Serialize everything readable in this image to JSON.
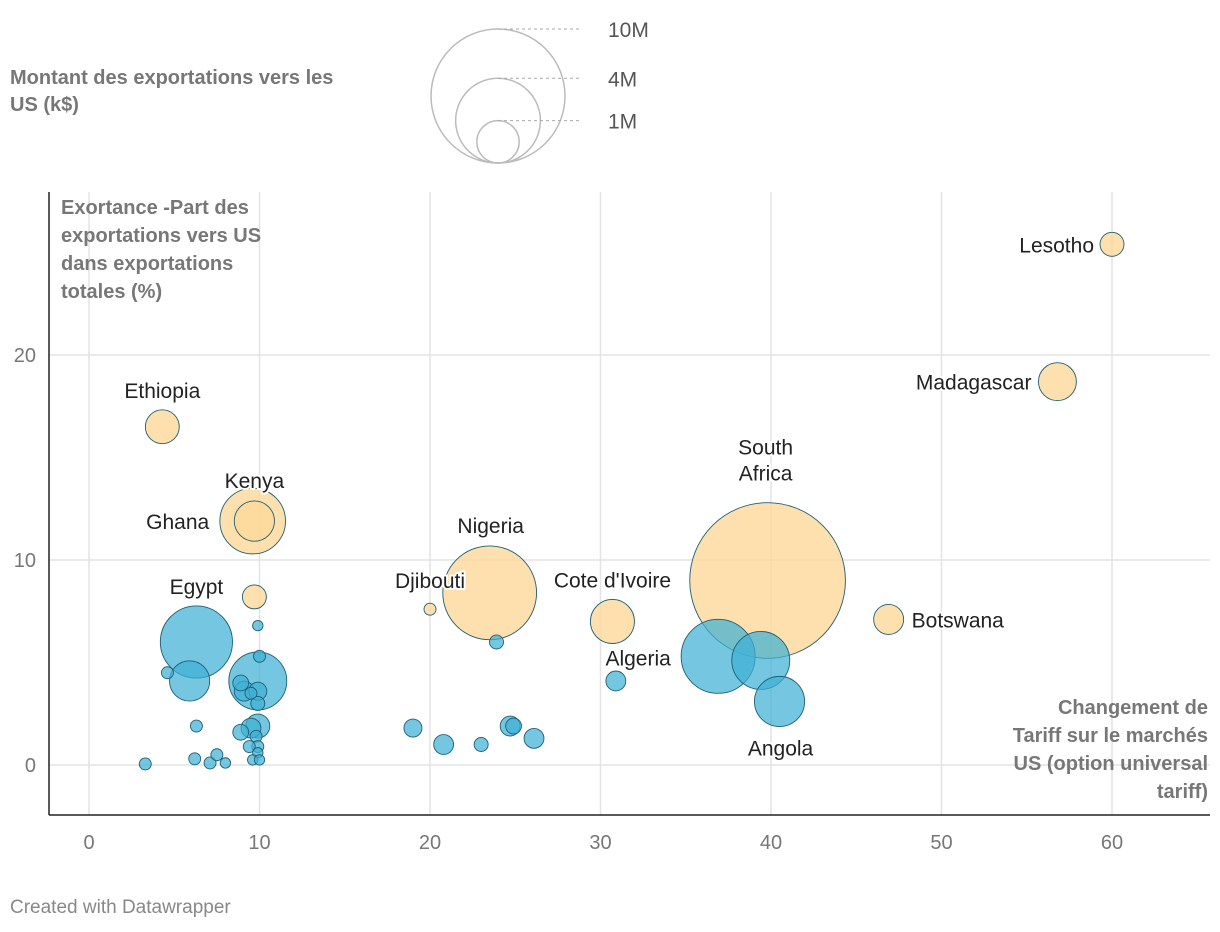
{
  "chart_data": {
    "type": "scatter",
    "subtype": "bubble",
    "size_legend_title": "Montant des exportations vers les US (k$)",
    "size_legend": [
      {
        "label": "10M",
        "value": 10000000
      },
      {
        "label": "4M",
        "value": 4000000
      },
      {
        "label": "1M",
        "value": 1000000
      }
    ],
    "ylabel": "Exortance -Part des exportations vers US dans exportations totales (%)",
    "ylabel_lines": [
      "Exortance -Part des",
      "exportations vers US",
      "dans exportations",
      "totales (%)"
    ],
    "xlabel": "Changement de Tariff sur le marchés US (option universal tariff)",
    "xlabel_lines": [
      "Changement de",
      "Tariff sur le marchés",
      "US (option universal",
      "tariff)"
    ],
    "xlim": [
      -2.3,
      66
    ],
    "ylim": [
      -2.5,
      28.1
    ],
    "xticks": [
      0,
      10,
      20,
      30,
      40,
      50,
      60
    ],
    "yticks": [
      0,
      10,
      20
    ],
    "grid": true,
    "colors": {
      "highlight": "#fdd89a",
      "other": "#3fb0d5",
      "stroke": "#1e5f72"
    },
    "points": [
      {
        "label": "South Africa",
        "x": 39.8,
        "y": 9.0,
        "size": 13500000,
        "group": "highlight"
      },
      {
        "label": "Nigeria",
        "x": 23.5,
        "y": 8.4,
        "size": 4900000,
        "group": "highlight"
      },
      {
        "label": "Ghana",
        "x": 9.6,
        "y": 11.9,
        "size": 2400000,
        "group": "highlight"
      },
      {
        "label": "Kenya",
        "x": 9.7,
        "y": 11.9,
        "size": 900000,
        "group": "highlight"
      },
      {
        "label": "Cote d'Ivoire",
        "x": 30.7,
        "y": 7.0,
        "size": 1080000,
        "group": "highlight"
      },
      {
        "label": "Madagascar",
        "x": 56.8,
        "y": 18.7,
        "size": 800000,
        "group": "highlight"
      },
      {
        "label": "Ethiopia",
        "x": 4.3,
        "y": 16.5,
        "size": 640000,
        "group": "highlight"
      },
      {
        "label": "Botswana",
        "x": 46.9,
        "y": 7.1,
        "size": 500000,
        "group": "highlight"
      },
      {
        "label": "Lesotho",
        "x": 60.0,
        "y": 25.4,
        "size": 320000,
        "group": "highlight"
      },
      {
        "label": "",
        "x": 9.7,
        "y": 8.2,
        "size": 320000,
        "group": "highlight"
      },
      {
        "label": "Djibouti",
        "x": 20.0,
        "y": 7.6,
        "size": 80000,
        "group": "highlight"
      },
      {
        "label": "Egypt",
        "x": 6.3,
        "y": 6.0,
        "size": 2900000,
        "group": "other"
      },
      {
        "label": "",
        "x": 5.9,
        "y": 4.1,
        "size": 900000,
        "group": "other"
      },
      {
        "label": "",
        "x": 9.9,
        "y": 4.1,
        "size": 1870000,
        "group": "other"
      },
      {
        "label": "Algeria",
        "x": 36.9,
        "y": 5.3,
        "size": 3050000,
        "group": "other"
      },
      {
        "label": "",
        "x": 39.4,
        "y": 5.1,
        "size": 1870000,
        "group": "other"
      },
      {
        "label": "Angola",
        "x": 40.5,
        "y": 3.1,
        "size": 1400000,
        "group": "other"
      },
      {
        "label": "",
        "x": 30.9,
        "y": 4.1,
        "size": 220000,
        "group": "other"
      },
      {
        "label": "",
        "x": 23.9,
        "y": 6.0,
        "size": 110000,
        "group": "other"
      },
      {
        "label": "",
        "x": 19.0,
        "y": 1.8,
        "size": 180000,
        "group": "other"
      },
      {
        "label": "",
        "x": 20.8,
        "y": 1.0,
        "size": 220000,
        "group": "other"
      },
      {
        "label": "",
        "x": 23.0,
        "y": 1.0,
        "size": 110000,
        "group": "other"
      },
      {
        "label": "",
        "x": 24.7,
        "y": 1.9,
        "size": 220000,
        "group": "other"
      },
      {
        "label": "",
        "x": 24.9,
        "y": 1.9,
        "size": 140000,
        "group": "other"
      },
      {
        "label": "",
        "x": 26.1,
        "y": 1.3,
        "size": 220000,
        "group": "other"
      },
      {
        "label": "",
        "x": 4.6,
        "y": 4.5,
        "size": 80000,
        "group": "other"
      },
      {
        "label": "",
        "x": 3.3,
        "y": 0.05,
        "size": 80000,
        "group": "other"
      },
      {
        "label": "",
        "x": 6.3,
        "y": 1.9,
        "size": 80000,
        "group": "other"
      },
      {
        "label": "",
        "x": 6.2,
        "y": 0.3,
        "size": 80000,
        "group": "other"
      },
      {
        "label": "",
        "x": 7.1,
        "y": 0.1,
        "size": 80000,
        "group": "other"
      },
      {
        "label": "",
        "x": 7.5,
        "y": 0.5,
        "size": 80000,
        "group": "other"
      },
      {
        "label": "",
        "x": 8.0,
        "y": 0.1,
        "size": 60000,
        "group": "other"
      },
      {
        "label": "",
        "x": 9.9,
        "y": 6.8,
        "size": 60000,
        "group": "other"
      },
      {
        "label": "",
        "x": 10.0,
        "y": 5.3,
        "size": 80000,
        "group": "other"
      },
      {
        "label": "",
        "x": 8.9,
        "y": 4.0,
        "size": 140000,
        "group": "other"
      },
      {
        "label": "",
        "x": 9.1,
        "y": 3.6,
        "size": 220000,
        "group": "other"
      },
      {
        "label": "",
        "x": 9.5,
        "y": 3.5,
        "size": 80000,
        "group": "other"
      },
      {
        "label": "",
        "x": 9.9,
        "y": 3.6,
        "size": 180000,
        "group": "other"
      },
      {
        "label": "",
        "x": 9.9,
        "y": 3.0,
        "size": 110000,
        "group": "other"
      },
      {
        "label": "",
        "x": 9.5,
        "y": 1.8,
        "size": 220000,
        "group": "other"
      },
      {
        "label": "",
        "x": 9.9,
        "y": 1.9,
        "size": 320000,
        "group": "other"
      },
      {
        "label": "",
        "x": 8.9,
        "y": 1.6,
        "size": 140000,
        "group": "other"
      },
      {
        "label": "",
        "x": 9.8,
        "y": 1.4,
        "size": 80000,
        "group": "other"
      },
      {
        "label": "",
        "x": 9.9,
        "y": 0.9,
        "size": 80000,
        "group": "other"
      },
      {
        "label": "",
        "x": 9.4,
        "y": 0.9,
        "size": 80000,
        "group": "other"
      },
      {
        "label": "",
        "x": 9.9,
        "y": 0.6,
        "size": 60000,
        "group": "other"
      },
      {
        "label": "",
        "x": 9.6,
        "y": 0.25,
        "size": 60000,
        "group": "other"
      },
      {
        "label": "",
        "x": 10.0,
        "y": 0.25,
        "size": 60000,
        "group": "other"
      }
    ]
  },
  "footer": {
    "credit": "Created with Datawrapper"
  }
}
